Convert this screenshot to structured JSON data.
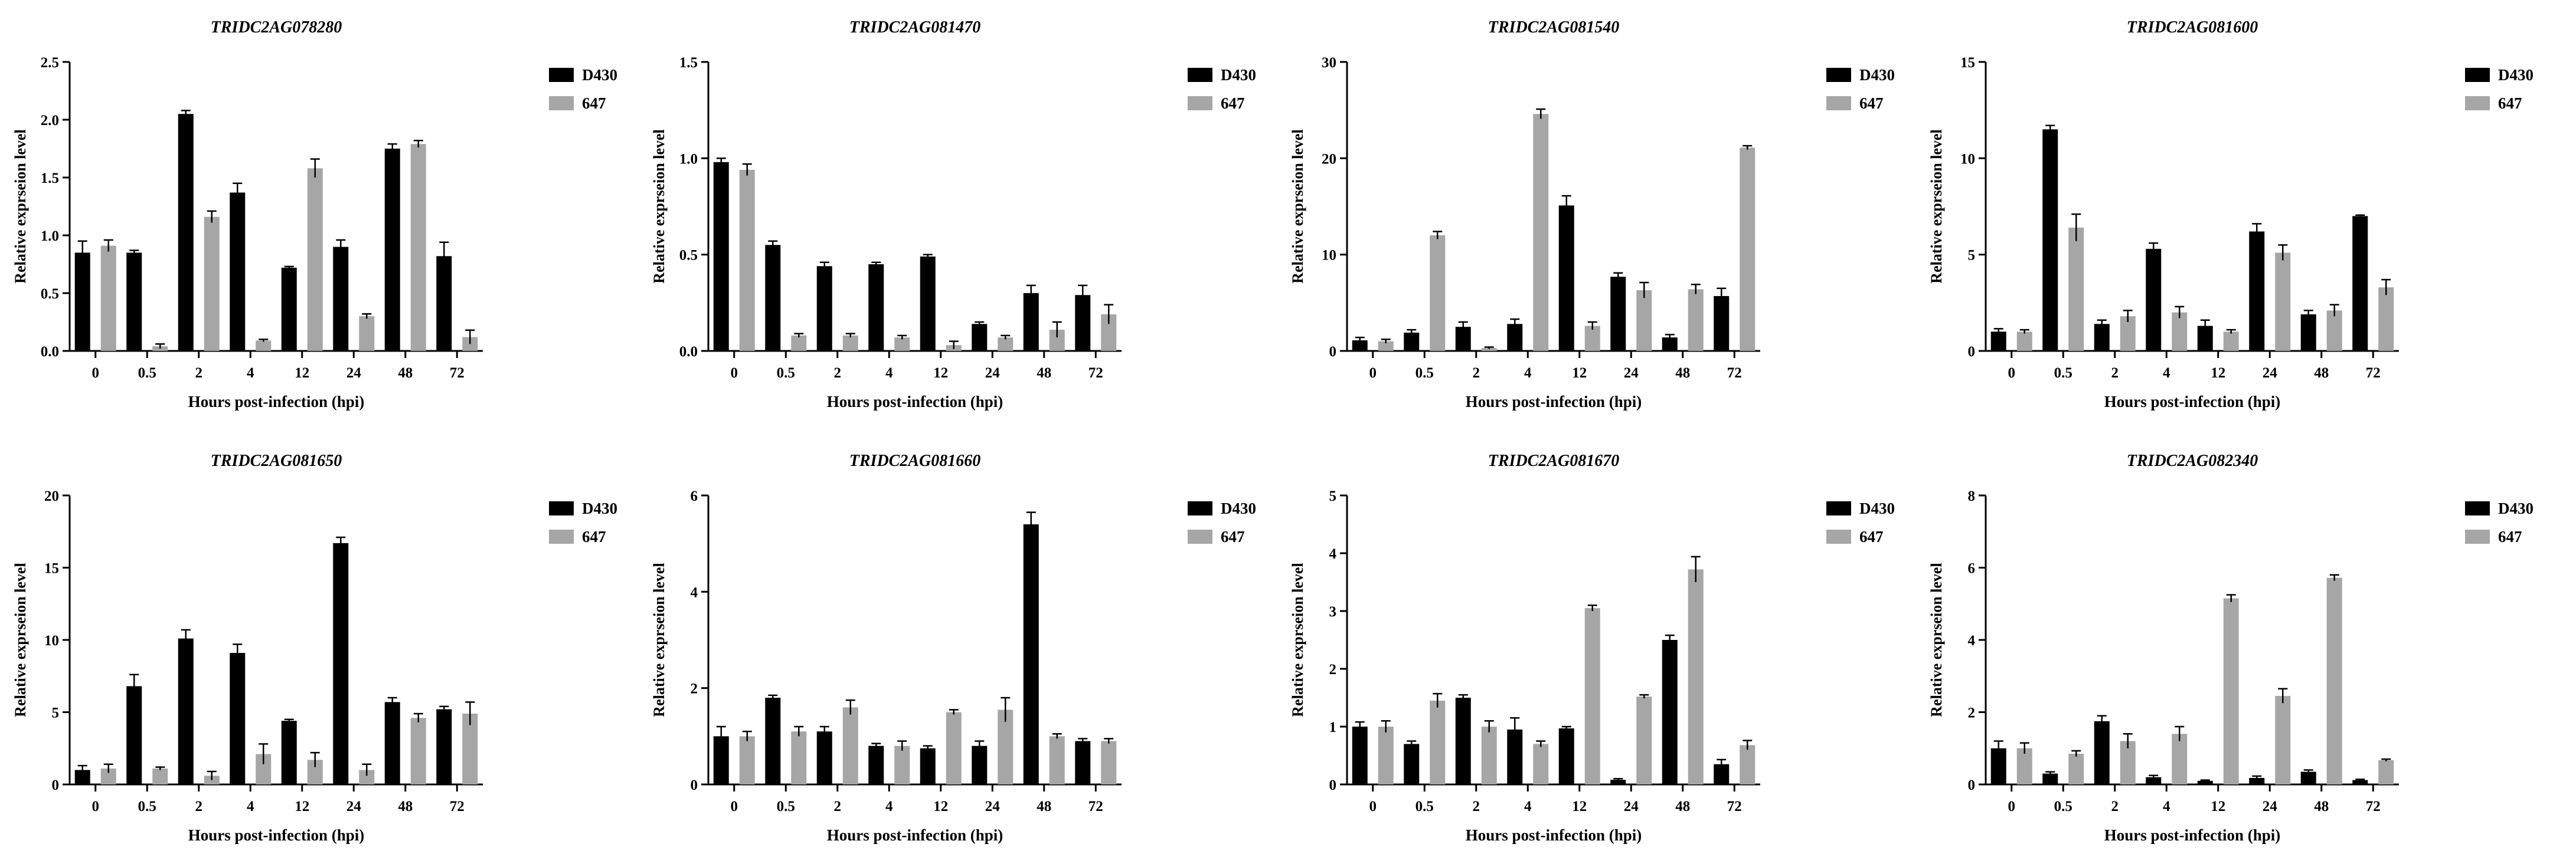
{
  "chart_data": [
    {
      "type": "bar",
      "title": "TRIDC2AG078280",
      "xlabel": "Hours post-infection (hpi)",
      "ylabel": "Relative exprseion level",
      "ylim": [
        0,
        2.5
      ],
      "yticks": [
        "0.0",
        "0.5",
        "1.0",
        "1.5",
        "2.0",
        "2.5"
      ],
      "categories": [
        "0",
        "0.5",
        "2",
        "4",
        "12",
        "24",
        "48",
        "72"
      ],
      "series": [
        {
          "name": "D430",
          "color": "#000000",
          "values": [
            0.85,
            0.85,
            2.05,
            1.37,
            0.72,
            0.9,
            1.75,
            0.82
          ],
          "errors": [
            0.1,
            0.02,
            0.03,
            0.08,
            0.01,
            0.06,
            0.04,
            0.12
          ]
        },
        {
          "name": "647",
          "color": "#a6a6a6",
          "values": [
            0.91,
            0.04,
            1.16,
            0.09,
            1.58,
            0.3,
            1.79,
            0.12
          ],
          "errors": [
            0.05,
            0.02,
            0.05,
            0.01,
            0.08,
            0.02,
            0.03,
            0.06
          ]
        }
      ]
    },
    {
      "type": "bar",
      "title": "TRIDC2AG081470",
      "xlabel": "Hours post-infection (hpi)",
      "ylabel": "Relative exprseion level",
      "ylim": [
        0,
        1.5
      ],
      "yticks": [
        "0.0",
        "0.5",
        "1.0",
        "1.5"
      ],
      "categories": [
        "0",
        "0.5",
        "2",
        "4",
        "12",
        "24",
        "48",
        "72"
      ],
      "series": [
        {
          "name": "D430",
          "color": "#000000",
          "values": [
            0.98,
            0.55,
            0.44,
            0.45,
            0.49,
            0.14,
            0.3,
            0.29
          ],
          "errors": [
            0.02,
            0.02,
            0.02,
            0.01,
            0.01,
            0.01,
            0.04,
            0.05
          ]
        },
        {
          "name": "647",
          "color": "#a6a6a6",
          "values": [
            0.94,
            0.08,
            0.08,
            0.07,
            0.03,
            0.07,
            0.11,
            0.19
          ],
          "errors": [
            0.03,
            0.01,
            0.01,
            0.01,
            0.02,
            0.01,
            0.04,
            0.05
          ]
        }
      ]
    },
    {
      "type": "bar",
      "title": "TRIDC2AG081540",
      "xlabel": "Hours post-infection (hpi)",
      "ylabel": "Relative exprseion level",
      "ylim": [
        0,
        30
      ],
      "yticks": [
        "0",
        "10",
        "20",
        "30"
      ],
      "categories": [
        "0",
        "0.5",
        "2",
        "4",
        "12",
        "24",
        "48",
        "72"
      ],
      "series": [
        {
          "name": "D430",
          "color": "#000000",
          "values": [
            1.1,
            1.9,
            2.5,
            2.8,
            15.1,
            7.7,
            1.4,
            5.7
          ],
          "errors": [
            0.3,
            0.3,
            0.5,
            0.5,
            1.0,
            0.4,
            0.3,
            0.8
          ]
        },
        {
          "name": "647",
          "color": "#a6a6a6",
          "values": [
            1.0,
            12.0,
            0.3,
            24.6,
            2.6,
            6.3,
            6.4,
            21.1
          ],
          "errors": [
            0.2,
            0.4,
            0.1,
            0.5,
            0.4,
            0.8,
            0.5,
            0.2
          ]
        }
      ]
    },
    {
      "type": "bar",
      "title": "TRIDC2AG081600",
      "xlabel": "Hours post-infection (hpi)",
      "ylabel": "Relative exprseion level",
      "ylim": [
        0,
        15
      ],
      "yticks": [
        "0",
        "5",
        "10",
        "15"
      ],
      "categories": [
        "0",
        "0.5",
        "2",
        "4",
        "12",
        "24",
        "48",
        "72"
      ],
      "series": [
        {
          "name": "D430",
          "color": "#000000",
          "values": [
            1.0,
            11.5,
            1.4,
            5.3,
            1.3,
            6.2,
            1.9,
            7.0
          ],
          "errors": [
            0.15,
            0.2,
            0.2,
            0.3,
            0.3,
            0.4,
            0.2,
            0.05
          ]
        },
        {
          "name": "647",
          "color": "#a6a6a6",
          "values": [
            1.0,
            6.4,
            1.8,
            2.0,
            1.0,
            5.1,
            2.1,
            3.3
          ],
          "errors": [
            0.1,
            0.7,
            0.3,
            0.3,
            0.1,
            0.4,
            0.3,
            0.4
          ]
        }
      ]
    },
    {
      "type": "bar",
      "title": "TRIDC2AG081650",
      "xlabel": "Hours post-infection (hpi)",
      "ylabel": "Relative exprseion level",
      "ylim": [
        0,
        20
      ],
      "yticks": [
        "0",
        "5",
        "10",
        "15",
        "20"
      ],
      "categories": [
        "0",
        "0.5",
        "2",
        "4",
        "12",
        "24",
        "48",
        "72"
      ],
      "series": [
        {
          "name": "D430",
          "color": "#000000",
          "values": [
            1.0,
            6.8,
            10.1,
            9.1,
            4.4,
            16.7,
            5.7,
            5.2
          ],
          "errors": [
            0.3,
            0.8,
            0.6,
            0.6,
            0.1,
            0.4,
            0.3,
            0.2
          ]
        },
        {
          "name": "647",
          "color": "#a6a6a6",
          "values": [
            1.1,
            1.1,
            0.6,
            2.1,
            1.7,
            1.0,
            4.6,
            4.9
          ],
          "errors": [
            0.3,
            0.1,
            0.3,
            0.7,
            0.5,
            0.4,
            0.3,
            0.8
          ]
        }
      ]
    },
    {
      "type": "bar",
      "title": "TRIDC2AG081660",
      "xlabel": "Hours post-infection (hpi)",
      "ylabel": "Relative exprseion level",
      "ylim": [
        0,
        6
      ],
      "yticks": [
        "0",
        "2",
        "4",
        "6"
      ],
      "categories": [
        "0",
        "0.5",
        "2",
        "4",
        "12",
        "24",
        "48",
        "72"
      ],
      "series": [
        {
          "name": "D430",
          "color": "#000000",
          "values": [
            1.0,
            1.8,
            1.1,
            0.8,
            0.75,
            0.8,
            5.4,
            0.9
          ],
          "errors": [
            0.2,
            0.05,
            0.1,
            0.05,
            0.05,
            0.1,
            0.25,
            0.05
          ]
        },
        {
          "name": "647",
          "color": "#a6a6a6",
          "values": [
            1.0,
            1.1,
            1.6,
            0.8,
            1.5,
            1.55,
            1.0,
            0.9
          ],
          "errors": [
            0.1,
            0.1,
            0.15,
            0.1,
            0.05,
            0.25,
            0.05,
            0.05
          ]
        }
      ]
    },
    {
      "type": "bar",
      "title": "TRIDC2AG081670",
      "xlabel": "Hours post-infection (hpi)",
      "ylabel": "Relative exprseion level",
      "ylim": [
        0,
        5
      ],
      "yticks": [
        "0",
        "1",
        "2",
        "3",
        "4",
        "5"
      ],
      "categories": [
        "0",
        "0.5",
        "2",
        "4",
        "12",
        "24",
        "48",
        "72"
      ],
      "series": [
        {
          "name": "D430",
          "color": "#000000",
          "values": [
            1.0,
            0.7,
            1.5,
            0.95,
            0.97,
            0.08,
            2.5,
            0.35
          ],
          "errors": [
            0.08,
            0.05,
            0.05,
            0.2,
            0.03,
            0.02,
            0.08,
            0.08
          ]
        },
        {
          "name": "647",
          "color": "#a6a6a6",
          "values": [
            1.0,
            1.45,
            1.0,
            0.7,
            3.05,
            1.52,
            3.72,
            0.68
          ],
          "errors": [
            0.1,
            0.12,
            0.1,
            0.05,
            0.05,
            0.03,
            0.22,
            0.08
          ]
        }
      ]
    },
    {
      "type": "bar",
      "title": "TRIDC2AG082340",
      "xlabel": "Hours post-infection (hpi)",
      "ylabel": "Relative exprseion level",
      "ylim": [
        0,
        8
      ],
      "yticks": [
        "0",
        "2",
        "4",
        "6",
        "8"
      ],
      "categories": [
        "0",
        "0.5",
        "2",
        "4",
        "12",
        "24",
        "48",
        "72"
      ],
      "series": [
        {
          "name": "D430",
          "color": "#000000",
          "values": [
            1.0,
            0.3,
            1.75,
            0.2,
            0.1,
            0.18,
            0.35,
            0.12
          ],
          "errors": [
            0.2,
            0.05,
            0.15,
            0.05,
            0.02,
            0.05,
            0.05,
            0.02
          ]
        },
        {
          "name": "647",
          "color": "#a6a6a6",
          "values": [
            1.0,
            0.85,
            1.2,
            1.4,
            5.15,
            2.45,
            5.72,
            0.67
          ],
          "errors": [
            0.15,
            0.08,
            0.2,
            0.2,
            0.1,
            0.2,
            0.08,
            0.03
          ]
        }
      ]
    }
  ]
}
